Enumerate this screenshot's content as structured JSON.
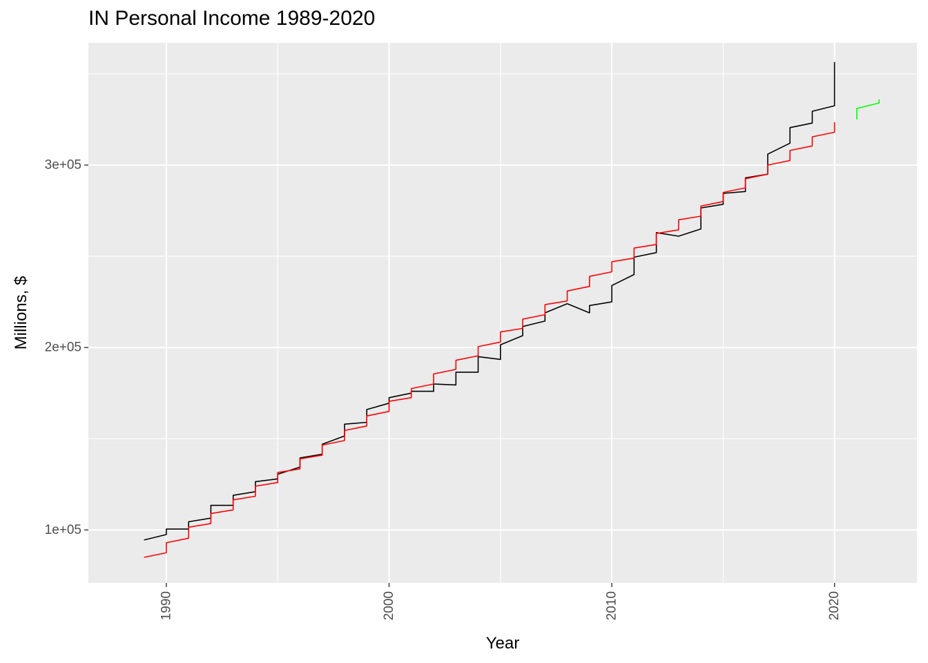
{
  "chart_data": {
    "type": "line",
    "title": "IN Personal Income 1989-2020",
    "xlabel": "Year",
    "ylabel": "Millions, $",
    "xlim": [
      1986.5,
      2023.7
    ],
    "ylim": [
      71000,
      367000
    ],
    "x_ticks": [
      1990,
      2000,
      2010,
      2020
    ],
    "x_tick_labels": [
      "1990",
      "2000",
      "2010",
      "2020"
    ],
    "y_ticks": [
      100000,
      200000,
      300000
    ],
    "y_tick_labels": [
      "1e+05",
      "2e+05",
      "3e+05"
    ],
    "grid": true,
    "background": "#ebebeb",
    "gridline_color": "#ffffff",
    "legend": "none",
    "series": [
      {
        "color": "#000000",
        "x": [
          1989.0,
          1990.0,
          1990.0,
          1991.0,
          1991.0,
          1992.0,
          1992.0,
          1993.0,
          1993.0,
          1994.0,
          1994.0,
          1995.0,
          1995.0,
          1996.0,
          1996.0,
          1997.0,
          1997.0,
          1998.0,
          1998.0,
          1999.0,
          1999.0,
          2000.0,
          2000.0,
          2001.0,
          2001.0,
          2002.0,
          2002.0,
          2003.0,
          2003.0,
          2004.0,
          2004.0,
          2005.0,
          2005.0,
          2006.0,
          2006.0,
          2007.0,
          2007.0,
          2008.0,
          2008.0,
          2009.0,
          2009.0,
          2010.0,
          2010.0,
          2011.0,
          2011.0,
          2012.0,
          2012.0,
          2013.0,
          2013.0,
          2014.0,
          2014.0,
          2015.0,
          2015.0,
          2016.0,
          2016.0,
          2017.0,
          2017.0,
          2018.0,
          2018.0,
          2019.0,
          2019.0,
          2020.0,
          2020.0
        ],
        "y": [
          94500,
          97500,
          100500,
          100500,
          104500,
          106500,
          113500,
          113500,
          119000,
          121000,
          126500,
          128000,
          130500,
          134500,
          139500,
          141500,
          147000,
          151500,
          158000,
          159000,
          166000,
          169500,
          172500,
          175000,
          176000,
          176000,
          180000,
          179500,
          186500,
          186500,
          195000,
          193500,
          201500,
          206500,
          211500,
          214500,
          219000,
          224000,
          224000,
          219000,
          223000,
          225000,
          234000,
          240000,
          249500,
          252000,
          263000,
          261000,
          261000,
          265000,
          276500,
          278500,
          284500,
          285500,
          293000,
          295000,
          306000,
          312000,
          320500,
          323000,
          329500,
          332500,
          356500
        ]
      },
      {
        "color": "#ff0000",
        "x": [
          1989.0,
          1990.0,
          1990.0,
          1991.0,
          1991.0,
          1992.0,
          1992.0,
          1993.0,
          1993.0,
          1994.0,
          1994.0,
          1995.0,
          1995.0,
          1996.0,
          1996.0,
          1997.0,
          1997.0,
          1998.0,
          1998.0,
          1999.0,
          1999.0,
          2000.0,
          2000.0,
          2001.0,
          2001.0,
          2002.0,
          2002.0,
          2003.0,
          2003.0,
          2004.0,
          2004.0,
          2005.0,
          2005.0,
          2006.0,
          2006.0,
          2007.0,
          2007.0,
          2008.0,
          2008.0,
          2009.0,
          2009.0,
          2010.0,
          2010.0,
          2011.0,
          2011.0,
          2012.0,
          2012.0,
          2013.0,
          2013.0,
          2014.0,
          2014.0,
          2015.0,
          2015.0,
          2016.0,
          2016.0,
          2017.0,
          2017.0,
          2018.0,
          2018.0,
          2019.0,
          2019.0,
          2020.0,
          2020.0
        ],
        "y": [
          85000,
          87500,
          93000,
          95500,
          101500,
          103500,
          109000,
          111000,
          116500,
          118500,
          124000,
          126000,
          131500,
          133500,
          139000,
          141000,
          146500,
          149000,
          154500,
          157000,
          162500,
          165000,
          170500,
          172500,
          177500,
          180000,
          185500,
          188000,
          193000,
          195500,
          200500,
          203000,
          208500,
          210500,
          215500,
          218000,
          223500,
          225500,
          231000,
          233500,
          239000,
          241500,
          247000,
          249000,
          254500,
          256500,
          262500,
          264500,
          270000,
          272000,
          277500,
          280000,
          285000,
          287500,
          292500,
          295000,
          300000,
          302500,
          308000,
          310500,
          315500,
          318000,
          323500
        ]
      },
      {
        "color": "#00ff00",
        "x": [
          2021.0,
          2021.0,
          2022.0,
          2022.0
        ],
        "y": [
          325000,
          331000,
          334000,
          336000
        ]
      }
    ]
  }
}
